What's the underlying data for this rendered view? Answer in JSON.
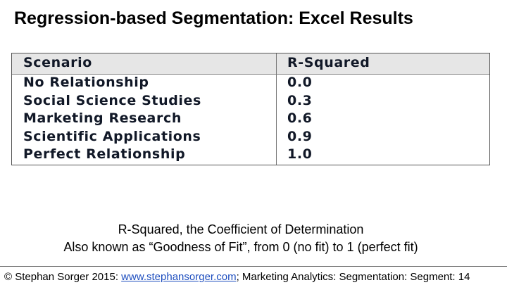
{
  "header": {
    "title": "Regression-based Segmentation: Excel Results"
  },
  "table": {
    "columns": [
      "Scenario",
      "R-Squared"
    ],
    "rows": [
      [
        "No Relationship",
        "0.0"
      ],
      [
        "Social Science Studies",
        "0.3"
      ],
      [
        "Marketing Research",
        "0.6"
      ],
      [
        "Scientific Applications",
        "0.9"
      ],
      [
        "Perfect Relationship",
        "1.0"
      ]
    ]
  },
  "caption": [
    "R-Squared, the Coefficient of Determination",
    "Also known as “Goodness of Fit”, from 0 (no fit) to 1 (perfect fit)"
  ],
  "footer": {
    "prefix": "© Stephan Sorger 2015: ",
    "link": "www.stephansorger.com",
    "suffix": "; Marketing Analytics: Segmentation: Segment: 14"
  }
}
